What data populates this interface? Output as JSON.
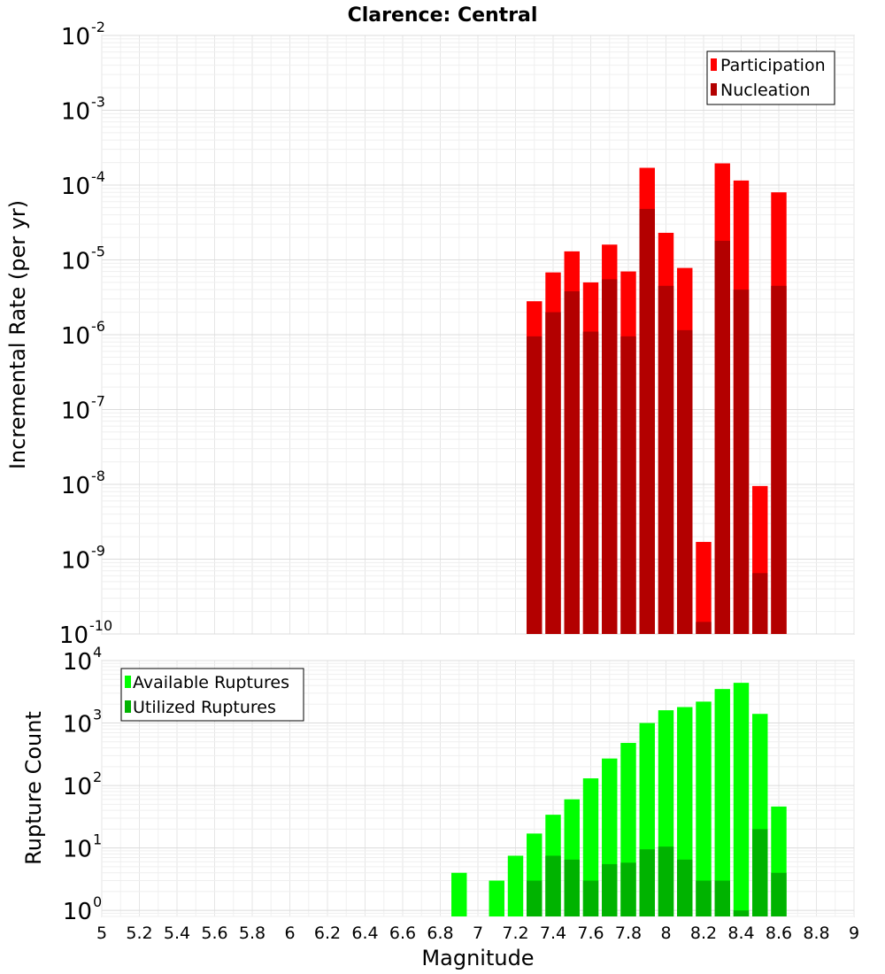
{
  "chart_data": [
    {
      "type": "bar",
      "title": "Clarence: Central",
      "xlabel": "",
      "ylabel": "Incremental Rate (per yr)",
      "yscale": "log",
      "ylim": [
        1e-10,
        0.01
      ],
      "xlim": [
        5,
        9
      ],
      "bar_width": 0.1,
      "grid": true,
      "legend_position": "top-right",
      "ytick_exponents": [
        "-10",
        "-9",
        "-8",
        "-7",
        "-6",
        "-5",
        "-4",
        "-3",
        "-2"
      ],
      "ytick_base": "10",
      "x": [
        7.3,
        7.4,
        7.5,
        7.6,
        7.7,
        7.8,
        7.9,
        8.0,
        8.1,
        8.2,
        8.3,
        8.4,
        8.5,
        8.6
      ],
      "series": [
        {
          "name": "Participation",
          "color": "#ff0000",
          "values": [
            2.8e-06,
            6.8e-06,
            1.3e-05,
            5e-06,
            1.6e-05,
            7e-06,
            0.00017,
            2.3e-05,
            7.8e-06,
            1.7e-09,
            0.000195,
            0.000115,
            9.5e-09,
            8e-05
          ]
        },
        {
          "name": "Nucleation",
          "color": "#b30000",
          "values": [
            9.5e-07,
            2e-06,
            3.8e-06,
            1.1e-06,
            5.5e-06,
            9.5e-07,
            4.8e-05,
            4.5e-06,
            1.15e-06,
            1.45e-10,
            1.8e-05,
            4e-06,
            6.5e-10,
            4.5e-06
          ]
        }
      ]
    },
    {
      "type": "bar",
      "title": "",
      "xlabel": "Magnitude",
      "ylabel": "Rupture Count",
      "yscale": "log",
      "ylim": [
        0.8,
        10000.0
      ],
      "xlim": [
        5,
        9
      ],
      "bar_width": 0.1,
      "grid": true,
      "legend_position": "top-left",
      "ytick_exponents": [
        "0",
        "1",
        "2",
        "3",
        "4"
      ],
      "ytick_base": "10",
      "xticks": [
        "5",
        "5.2",
        "5.4",
        "5.6",
        "5.8",
        "6",
        "6.2",
        "6.4",
        "6.6",
        "6.8",
        "7",
        "7.2",
        "7.4",
        "7.6",
        "7.8",
        "8",
        "8.2",
        "8.4",
        "8.6",
        "8.8",
        "9"
      ],
      "x": [
        6.9,
        7.1,
        7.2,
        7.3,
        7.4,
        7.5,
        7.6,
        7.7,
        7.8,
        7.9,
        8.0,
        8.1,
        8.2,
        8.3,
        8.4,
        8.5,
        8.6
      ],
      "series": [
        {
          "name": "Available Ruptures",
          "color": "#00ff00",
          "values": [
            4,
            3,
            7.5,
            17,
            34,
            60,
            130,
            270,
            480,
            1000,
            1600,
            1800,
            2200,
            3500,
            4400,
            1400,
            46
          ]
        },
        {
          "name": "Utilized Ruptures",
          "color": "#00b300",
          "values": [
            0,
            0,
            0,
            3,
            7.5,
            6.5,
            3,
            5.5,
            5.8,
            9.5,
            10.5,
            6.5,
            3,
            3,
            1,
            20,
            4
          ]
        }
      ]
    }
  ]
}
